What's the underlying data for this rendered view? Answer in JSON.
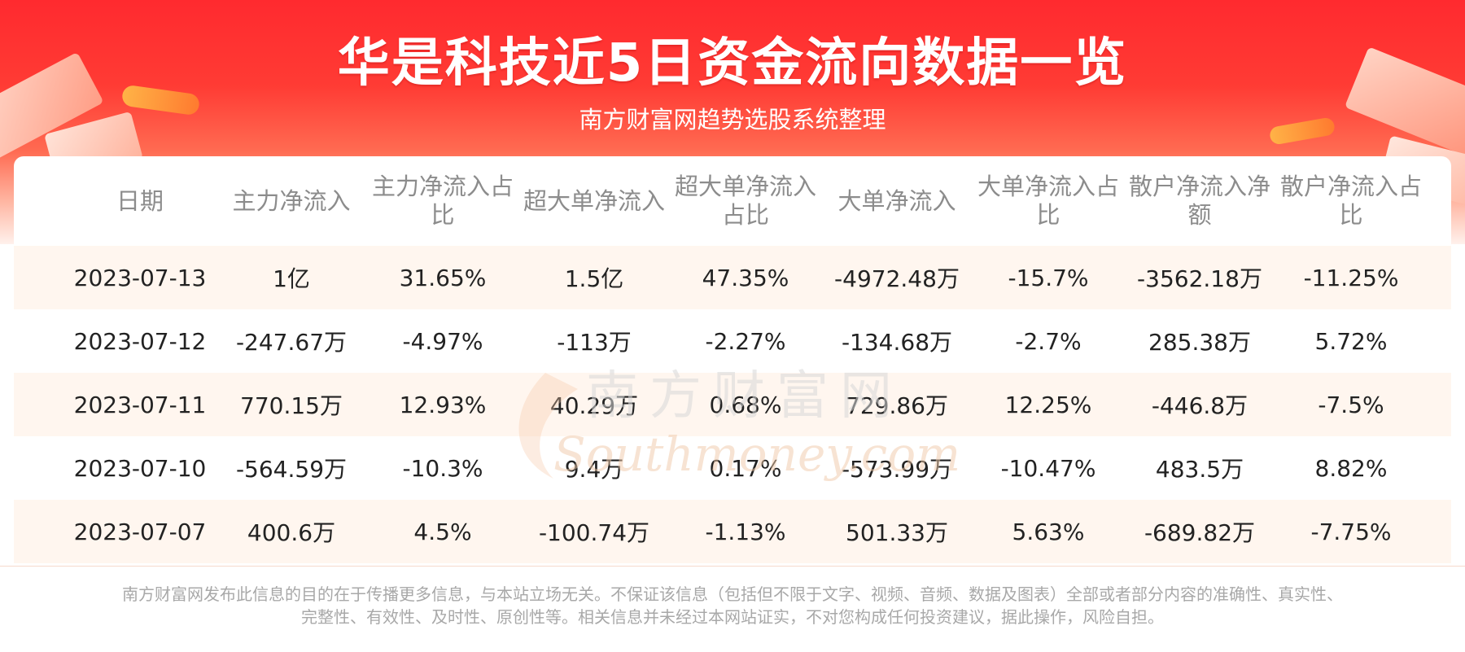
{
  "header": {
    "title": "华是科技近5日资金流向数据一览",
    "subtitle": "南方财富网趋势选股系统整理"
  },
  "table": {
    "columns": [
      "日期",
      "主力净流入",
      "主力净流入占比",
      "超大单净流入",
      "超大单净流入占比",
      "大单净流入",
      "大单净流入占比",
      "散户净流入净额",
      "散户净流入占比"
    ],
    "rows": [
      [
        "2023-07-13",
        "1亿",
        "31.65%",
        "1.5亿",
        "47.35%",
        "-4972.48万",
        "-15.7%",
        "-3562.18万",
        "-11.25%"
      ],
      [
        "2023-07-12",
        "-247.67万",
        "-4.97%",
        "-113万",
        "-2.27%",
        "-134.68万",
        "-2.7%",
        "285.38万",
        "5.72%"
      ],
      [
        "2023-07-11",
        "770.15万",
        "12.93%",
        "40.29万",
        "0.68%",
        "729.86万",
        "12.25%",
        "-446.8万",
        "-7.5%"
      ],
      [
        "2023-07-10",
        "-564.59万",
        "-10.3%",
        "9.4万",
        "0.17%",
        "-573.99万",
        "-10.47%",
        "483.5万",
        "8.82%"
      ],
      [
        "2023-07-07",
        "400.6万",
        "4.5%",
        "-100.74万",
        "-1.13%",
        "501.33万",
        "5.63%",
        "-689.82万",
        "-7.75%"
      ]
    ]
  },
  "watermark": {
    "cn": "南方财富网",
    "en": "Southmoney.com"
  },
  "footer": {
    "line1": "南方财富网发布此信息的目的在于传播更多信息，与本站立场无关。不保证该信息（包括但不限于文字、视频、音频、数据及图表）全部或者部分内容的准确性、真实性、",
    "line2": "完整性、有效性、及时性、原创性等。相关信息并未经过本网站证实，不对您构成任何投资建议，据此操作，风险自担。"
  },
  "colors": {
    "banner_red": "#ff2a2f",
    "row_stripe": "#fff6ef",
    "header_text": "#8c8c8c",
    "cell_text": "#222222"
  }
}
